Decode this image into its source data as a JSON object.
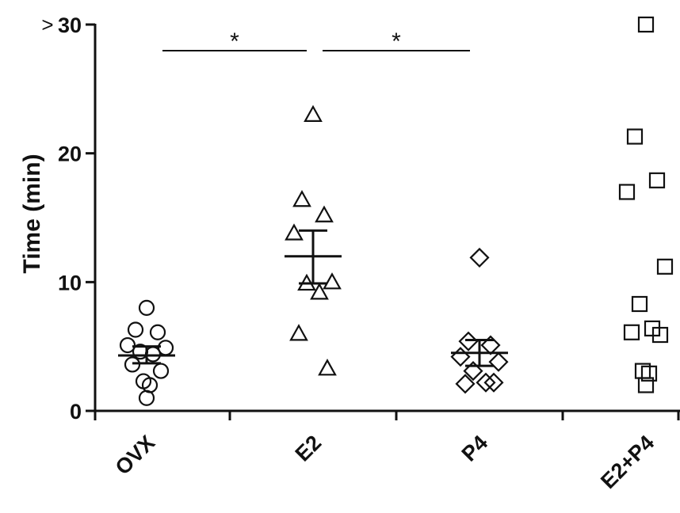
{
  "chart_data": {
    "type": "scatter",
    "title": "",
    "xlabel": "",
    "ylabel": "Time (min)",
    "ylim": [
      0,
      30
    ],
    "yticks": [
      0,
      10,
      20,
      30
    ],
    "ytick_labels": [
      "0",
      "10",
      "20",
      "30"
    ],
    "top_prefix": ">",
    "categories": [
      "OVX",
      "E2",
      "P4",
      "E2+P4"
    ],
    "series": [
      {
        "category": "OVX",
        "marker": "circle",
        "values": [
          8.0,
          6.3,
          6.1,
          5.1,
          4.9,
          4.6,
          4.4,
          3.6,
          3.1,
          2.3,
          2.0,
          1.0
        ],
        "mean": 4.3,
        "sem_low": 3.7,
        "sem_high": 5.0
      },
      {
        "category": "E2",
        "marker": "triangle",
        "values": [
          23.0,
          16.4,
          15.2,
          13.8,
          10.0,
          9.9,
          9.2,
          6.0,
          3.3
        ],
        "mean": 12.0,
        "sem_low": 9.9,
        "sem_high": 14.0
      },
      {
        "category": "P4",
        "marker": "diamond",
        "values": [
          11.9,
          5.4,
          5.1,
          4.2,
          3.8,
          3.1,
          2.2,
          2.1,
          2.2
        ],
        "mean": 4.5,
        "sem_low": 3.5,
        "sem_high": 5.5
      },
      {
        "category": "E2+P4",
        "marker": "square",
        "values": [
          30.0,
          21.3,
          17.9,
          17.0,
          11.2,
          8.3,
          6.4,
          6.1,
          5.9,
          3.1,
          2.9,
          2.0
        ]
      }
    ],
    "annotations": [
      {
        "label": "*",
        "from": "OVX",
        "to": "E2"
      },
      {
        "label": "*",
        "from": "E2",
        "to": "P4"
      }
    ],
    "grid": false,
    "legend": "none"
  }
}
